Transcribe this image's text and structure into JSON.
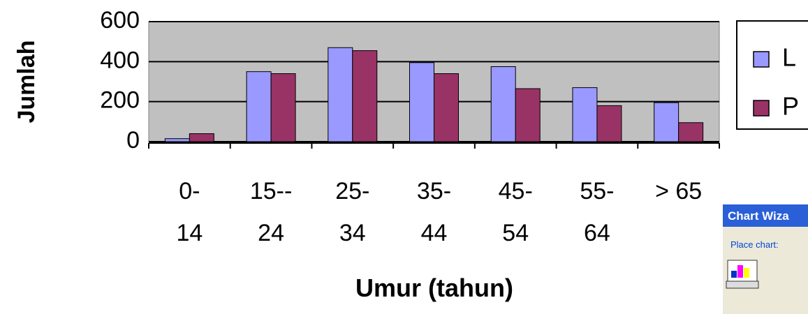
{
  "chart_data": {
    "type": "bar",
    "categories": [
      "0-14",
      "15--24",
      "25-34",
      "35-44",
      "45-54",
      "55-64",
      "> 65"
    ],
    "series": [
      {
        "name": "L",
        "color": "#9999ff",
        "values": [
          15,
          350,
          470,
          395,
          375,
          270,
          195
        ]
      },
      {
        "name": "P",
        "color": "#993366",
        "values": [
          40,
          340,
          455,
          340,
          265,
          180,
          95
        ]
      }
    ],
    "xlabel": "Umur (tahun)",
    "ylabel": "Jumlah",
    "ylim": [
      0,
      600
    ],
    "yticks": [
      0,
      200,
      400,
      600
    ],
    "grid": true,
    "legend": "right"
  },
  "wizard": {
    "title": "Chart Wiza",
    "label": "Place chart:"
  }
}
